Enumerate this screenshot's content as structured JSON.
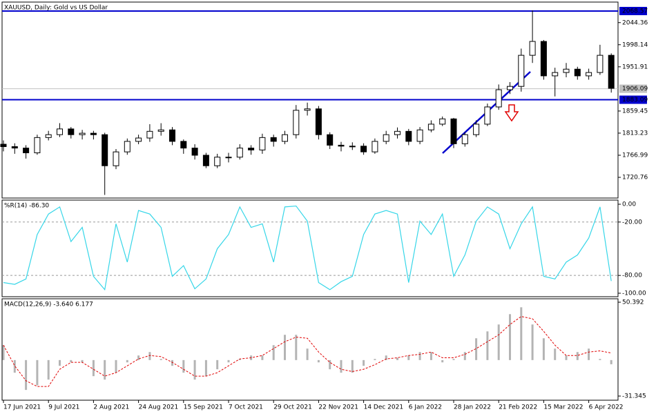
{
  "chart_data": [
    {
      "type": "candlestick",
      "title": "XAUUSD, Daily:  Gold vs US Dollar",
      "open": [
        1790,
        1785,
        1782,
        1772,
        1804,
        1810,
        1822,
        1810,
        1813,
        1810,
        1745,
        1774,
        1796,
        1803,
        1817,
        1820,
        1796,
        1782,
        1767,
        1745,
        1763,
        1763,
        1782,
        1778,
        1804,
        1796,
        1810,
        1861,
        1864,
        1810,
        1788,
        1786,
        1786,
        1774,
        1796,
        1810,
        1817,
        1796,
        1820,
        1832,
        1843,
        1791,
        1810,
        1832,
        1868,
        1904,
        1911,
        1976,
        2005,
        1933,
        1940,
        1947,
        1933,
        1940,
        1976
      ],
      "high": [
        1798,
        1792,
        1788,
        1810,
        1818,
        1834,
        1826,
        1820,
        1818,
        1814,
        1780,
        1802,
        1810,
        1832,
        1834,
        1826,
        1800,
        1790,
        1772,
        1770,
        1772,
        1790,
        1788,
        1812,
        1810,
        1818,
        1872,
        1877,
        1870,
        1815,
        1795,
        1794,
        1792,
        1802,
        1818,
        1825,
        1822,
        1826,
        1840,
        1848,
        1845,
        1815,
        1840,
        1875,
        1915,
        1920,
        1990,
        2070,
        2008,
        1950,
        1960,
        1952,
        1948,
        1998,
        1980
      ],
      "low": [
        1775,
        1770,
        1760,
        1768,
        1798,
        1805,
        1802,
        1800,
        1800,
        1684,
        1738,
        1768,
        1790,
        1795,
        1808,
        1788,
        1770,
        1758,
        1740,
        1740,
        1752,
        1758,
        1768,
        1770,
        1785,
        1790,
        1802,
        1850,
        1800,
        1780,
        1775,
        1778,
        1768,
        1770,
        1790,
        1802,
        1788,
        1790,
        1815,
        1828,
        1782,
        1785,
        1805,
        1828,
        1862,
        1895,
        1900,
        1960,
        1925,
        1890,
        1930,
        1925,
        1925,
        1935,
        1898
      ],
      "close": [
        1785,
        1782,
        1772,
        1804,
        1810,
        1822,
        1810,
        1813,
        1810,
        1745,
        1774,
        1796,
        1803,
        1817,
        1820,
        1796,
        1782,
        1767,
        1745,
        1763,
        1763,
        1782,
        1778,
        1804,
        1796,
        1810,
        1861,
        1864,
        1810,
        1788,
        1786,
        1786,
        1774,
        1796,
        1810,
        1817,
        1796,
        1820,
        1832,
        1843,
        1791,
        1810,
        1832,
        1868,
        1904,
        1911,
        1976,
        2005,
        1933,
        1940,
        1947,
        1933,
        1940,
        1976,
        1907
      ],
      "color": "#000000",
      "ylim": [
        1677.5,
        2087.3
      ],
      "yticks": [
        2044.36,
        1998.14,
        1951.91,
        1859.45,
        1813.23,
        1766.99,
        1720.76
      ],
      "hlines": [
        2068.57,
        1883.09
      ],
      "hline_color": "#0000cd",
      "current_price": 1906.09
    },
    {
      "type": "line",
      "title": "%R(14) -86.30",
      "values": [
        -88,
        -90,
        -84,
        -34,
        -11,
        -3,
        -42,
        -26,
        -81,
        -96,
        -22,
        -65,
        -7,
        -11,
        -26,
        -81,
        -69,
        -95,
        -84,
        -50,
        -34,
        -3,
        -26,
        -22,
        -65,
        -3,
        -2,
        -19,
        -88,
        -96,
        -87,
        -81,
        -34,
        -11,
        -7,
        -11,
        -88,
        -19,
        -34,
        -11,
        -81,
        -57,
        -19,
        -3,
        -11,
        -50,
        -22,
        -3,
        -81,
        -84,
        -65,
        -57,
        -38,
        -3,
        -86.3
      ],
      "color": "#35d6e8",
      "ylim": [
        -103.9,
        4.65
      ],
      "yticks": [
        {
          "value": 0,
          "label": "0.00"
        },
        {
          "value": -20,
          "label": "-20.00"
        },
        {
          "value": -80,
          "label": "-80.00"
        },
        {
          "value": -100,
          "label": "-100.00"
        }
      ]
    },
    {
      "type": "macd",
      "title": "MACD(12,26,9) -3.640 6.177",
      "categories": [
        "17 Jun 2021",
        null,
        null,
        null,
        "9 Jul 2021",
        null,
        null,
        null,
        "2 Aug 2021",
        null,
        null,
        null,
        "24 Aug 2021",
        null,
        null,
        null,
        "15 Sep 2021",
        null,
        null,
        null,
        "7 Oct 2021",
        null,
        null,
        null,
        "29 Oct 2021",
        null,
        null,
        null,
        "22 Nov 2021",
        null,
        null,
        null,
        "14 Dec 2021",
        null,
        null,
        null,
        "6 Jan 2022",
        null,
        null,
        null,
        "28 Jan 2022",
        null,
        null,
        null,
        "21 Feb 2022",
        null,
        null,
        null,
        "15 Mar 2022",
        null,
        null,
        null,
        "6 Apr 2022",
        null,
        null
      ],
      "series": [
        {
          "color": "#b4b4b4",
          "values": [
            13,
            -11,
            -26,
            -22,
            -17,
            -5,
            -2,
            -2,
            -14,
            -17,
            -11,
            -2,
            4,
            7,
            1,
            -5,
            -11,
            -17,
            -14,
            -8,
            -2,
            1,
            4,
            4,
            13,
            22,
            22,
            10,
            -2,
            -8,
            -11,
            -11,
            -5,
            1,
            4,
            2,
            4,
            7,
            7,
            -2,
            1,
            7,
            19,
            25,
            31,
            40,
            46,
            31,
            19,
            10,
            4,
            7,
            10,
            1,
            -3.64
          ]
        },
        {
          "color": "#e00000",
          "values": [
            13,
            -5,
            -18,
            -23,
            -23,
            -8,
            -2,
            -2,
            -8,
            -14,
            -11,
            -5,
            1,
            4,
            3,
            -2,
            -8,
            -14,
            -14,
            -11,
            -5,
            1,
            2,
            4,
            10,
            16,
            20,
            19,
            7,
            -2,
            -8,
            -10,
            -8,
            -4,
            1,
            2,
            4,
            5,
            7,
            2,
            2,
            5,
            10,
            16,
            22,
            31,
            38,
            36,
            25,
            13,
            4,
            4,
            7,
            8,
            6.177
          ]
        }
      ],
      "ylim": [
        -34.95,
        53.4
      ],
      "yticks": [
        50.392,
        -31.345
      ]
    }
  ]
}
